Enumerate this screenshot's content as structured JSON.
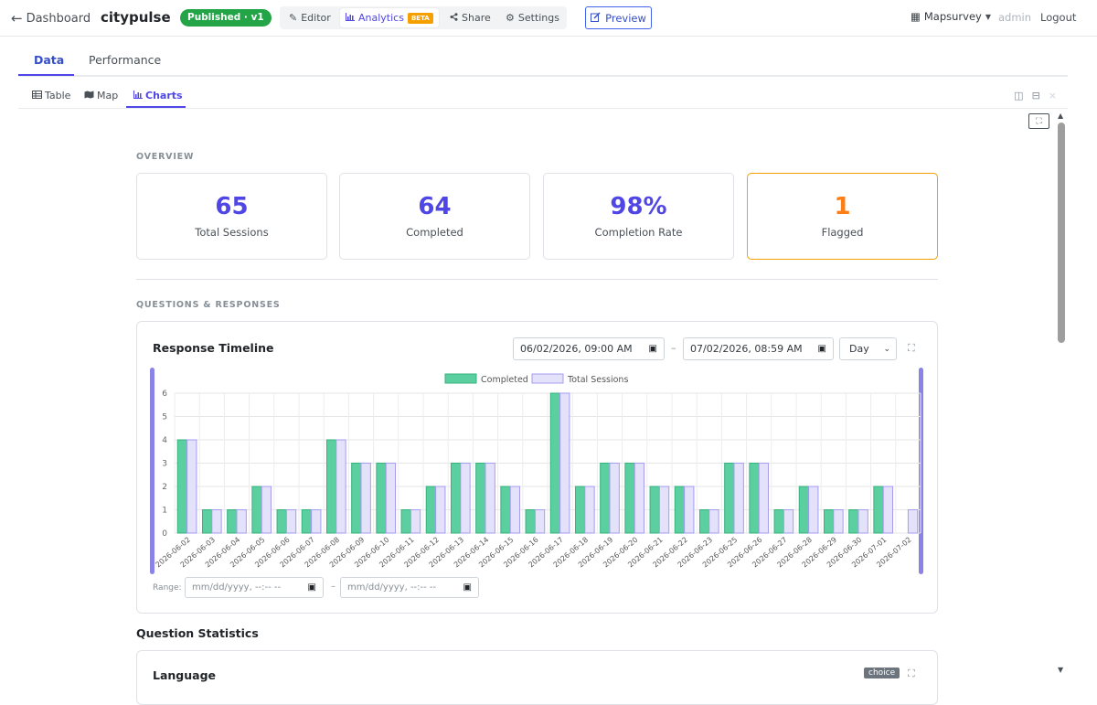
{
  "topbar": {
    "back_label": "Dashboard",
    "app_name": "citypulse",
    "status_badge": "Published · v1",
    "nav": [
      {
        "label": "Editor",
        "icon": "pencil-icon"
      },
      {
        "label": "Analytics",
        "icon": "chart-icon",
        "badge": "BETA",
        "active": true
      },
      {
        "label": "Share",
        "icon": "share-icon"
      },
      {
        "label": "Settings",
        "icon": "gear-icon"
      }
    ],
    "preview_label": "Preview",
    "org_label": "Mapsurvey",
    "user_label": "admin",
    "logout_label": "Logout"
  },
  "main_tabs": [
    "Data",
    "Performance"
  ],
  "sub_tabs": [
    "Table",
    "Map",
    "Charts"
  ],
  "overview": {
    "label": "OVERVIEW",
    "stats": [
      {
        "value": "65",
        "label": "Total Sessions"
      },
      {
        "value": "64",
        "label": "Completed"
      },
      {
        "value": "98%",
        "label": "Completion Rate"
      },
      {
        "value": "1",
        "label": "Flagged"
      }
    ]
  },
  "questions_label": "QUESTIONS & RESPONSES",
  "timeline": {
    "title": "Response Timeline",
    "from_value": "06/02/2026, 09:00 AM",
    "to_value": "07/02/2026, 08:59 AM",
    "separator": "–",
    "granularity": "Day",
    "range_label": "Range:",
    "range_from_placeholder": "mm/dd/yyyy, --:-- --",
    "range_to_placeholder": "mm/dd/yyyy, --:-- --"
  },
  "chart_data": {
    "type": "bar",
    "categories": [
      "2026-06-02",
      "2026-06-03",
      "2026-06-04",
      "2026-06-05",
      "2026-06-06",
      "2026-06-07",
      "2026-06-08",
      "2026-06-09",
      "2026-06-10",
      "2026-06-11",
      "2026-06-12",
      "2026-06-13",
      "2026-06-14",
      "2026-06-15",
      "2026-06-16",
      "2026-06-17",
      "2026-06-18",
      "2026-06-19",
      "2026-06-20",
      "2026-06-21",
      "2026-06-22",
      "2026-06-23",
      "2026-06-25",
      "2026-06-26",
      "2026-06-27",
      "2026-06-28",
      "2026-06-29",
      "2026-06-30",
      "2026-07-01",
      "2026-07-02"
    ],
    "series": [
      {
        "name": "Completed",
        "color": "#5ccfa0",
        "border": "#34b37e",
        "values": [
          4,
          1,
          1,
          2,
          1,
          1,
          4,
          3,
          3,
          1,
          2,
          3,
          3,
          2,
          1,
          6,
          2,
          3,
          3,
          2,
          2,
          1,
          3,
          3,
          1,
          2,
          1,
          1,
          2,
          0
        ]
      },
      {
        "name": "Total Sessions",
        "color": "#e4e1fa",
        "border": "#a59cf0",
        "values": [
          4,
          1,
          1,
          2,
          1,
          1,
          4,
          3,
          3,
          1,
          2,
          3,
          3,
          2,
          1,
          6,
          2,
          3,
          3,
          2,
          2,
          1,
          3,
          3,
          1,
          2,
          1,
          1,
          2,
          1
        ]
      }
    ],
    "ylim": [
      0,
      6
    ],
    "yticks": [
      0,
      1,
      2,
      3,
      4,
      5,
      6
    ],
    "legend": "top-center",
    "grid": true
  },
  "question_stats": {
    "title": "Question Statistics",
    "cards": [
      {
        "title": "Language",
        "type_badge": "choice"
      }
    ]
  }
}
